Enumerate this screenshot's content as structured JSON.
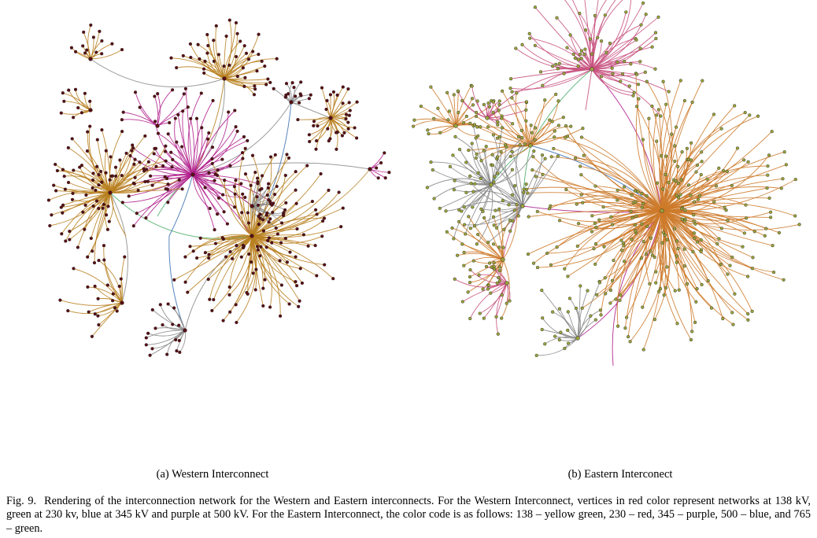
{
  "figure": {
    "subfigures": [
      {
        "label": "(a) Western Interconnect"
      },
      {
        "label": "(b) Eastern Interconect"
      }
    ],
    "caption_label": "Fig. 9.",
    "caption_text": "Rendering of the interconnection network for the Western and Eastern interconnects. For the Western Interconnect, vertices in red color represent networks at 138 kV, green at 230 kv, blue at 345 kV and purple at 500 kV. For the Eastern Interconnect, the color code is as follows: 138 – yellow green, 230 – red, 345 – purple, 500 – blue, and 765 – green."
  },
  "colors": {
    "western_node": "#5a0e14",
    "eastern_node": "#9aa33a",
    "edge_orange": "#b8801f",
    "edge_orange_east": "#cd7a2a",
    "edge_magenta": "#b01f8c",
    "edge_pink": "#c8527f",
    "edge_gray": "#8a8a8a",
    "edge_blue": "#3a6fb0",
    "edge_green": "#4caf6a"
  }
}
